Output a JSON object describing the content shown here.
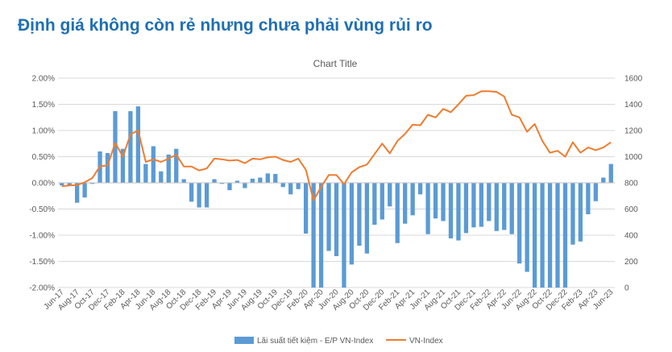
{
  "headline": "Định giá không còn rẻ nhưng chưa phải vùng rủi ro",
  "chart_data": {
    "type": "bar+line",
    "title": "Chart Title",
    "x": [
      "Jun-17",
      "Jul-17",
      "Aug-17",
      "Sep-17",
      "Oct-17",
      "Nov-17",
      "Dec-17",
      "Jan-18",
      "Feb-18",
      "Mar-18",
      "Apr-18",
      "May-18",
      "Jun-18",
      "Jul-18",
      "Aug-18",
      "Sep-18",
      "Oct-18",
      "Nov-18",
      "Dec-18",
      "Jan-19",
      "Feb-19",
      "Mar-19",
      "Apr-19",
      "May-19",
      "Jun-19",
      "Jul-19",
      "Aug-19",
      "Sep-19",
      "Oct-19",
      "Nov-19",
      "Dec-19",
      "Jan-20",
      "Feb-20",
      "Mar-20",
      "Apr-20",
      "May-20",
      "Jun-20",
      "Jul-20",
      "Aug-20",
      "Sep-20",
      "Oct-20",
      "Nov-20",
      "Dec-20",
      "Jan-21",
      "Feb-21",
      "Mar-21",
      "Apr-21",
      "May-21",
      "Jun-21",
      "Jul-21",
      "Aug-21",
      "Sep-21",
      "Oct-21",
      "Nov-21",
      "Dec-21",
      "Jan-22",
      "Feb-22",
      "Mar-22",
      "Apr-22",
      "May-22",
      "Jun-22",
      "Jul-22",
      "Aug-22",
      "Sep-22",
      "Oct-22",
      "Nov-22",
      "Dec-22",
      "Jan-23",
      "Feb-23",
      "Mar-23",
      "Apr-23",
      "May-23",
      "Jun-23"
    ],
    "x_tick_labels": [
      "Jun-17",
      "Aug-17",
      "Oct-17",
      "Dec-17",
      "Feb-18",
      "Apr-18",
      "Jun-18",
      "Aug-18",
      "Oct-18",
      "Dec-18",
      "Feb-19",
      "Apr-19",
      "Jun-19",
      "Aug-19",
      "Oct-19",
      "Dec-19",
      "Feb-20",
      "Apr-20",
      "Jun-20",
      "Aug-20",
      "Oct-20",
      "Dec-20",
      "Feb-21",
      "Apr-21",
      "Jun-21",
      "Aug-21",
      "Oct-21",
      "Dec-21",
      "Feb-22",
      "Apr-22",
      "Jun-22",
      "Aug-22",
      "Oct-22",
      "Dec-22",
      "Feb-23",
      "Apr-23",
      "Jun-23"
    ],
    "y_left_ticks": [
      "2.00%",
      "1.50%",
      "1.00%",
      "0.50%",
      "0.00%",
      "-0.50%",
      "-1.00%",
      "-1.50%",
      "-2.00%"
    ],
    "y_left_lim": [
      -2.0,
      2.0
    ],
    "y_right_ticks": [
      "1600",
      "1400",
      "1200",
      "1000",
      "800",
      "600",
      "400",
      "200",
      "0"
    ],
    "y_right_lim": [
      0,
      1600
    ],
    "grid": true,
    "legend_position": "bottom",
    "series": [
      {
        "name": "Lãi suất tiết kiệm - E/P VN-Index",
        "type": "bar",
        "axis": "left",
        "color": "#5b9bd5",
        "values": [
          -0.05,
          -0.05,
          -0.38,
          -0.28,
          -0.02,
          0.6,
          0.57,
          1.37,
          0.65,
          1.37,
          1.46,
          0.36,
          0.7,
          0.22,
          0.54,
          0.65,
          0.07,
          -0.36,
          -0.47,
          -0.47,
          0.07,
          -0.02,
          -0.14,
          0.04,
          -0.1,
          0.08,
          0.1,
          0.18,
          0.17,
          -0.08,
          -0.22,
          -0.12,
          -0.97,
          -2.0,
          -2.0,
          -1.3,
          -1.4,
          -2.0,
          -1.56,
          -1.2,
          -1.35,
          -0.8,
          -0.7,
          -0.45,
          -1.15,
          -0.78,
          -0.62,
          -0.22,
          -0.98,
          -0.68,
          -0.73,
          -1.06,
          -1.1,
          -0.96,
          -0.85,
          -0.84,
          -0.73,
          -0.92,
          -0.9,
          -0.98,
          -1.54,
          -1.7,
          -2.0,
          -2.0,
          -2.0,
          -2.0,
          -2.0,
          -1.18,
          -1.12,
          -0.6,
          -0.35,
          0.1,
          0.36
        ]
      },
      {
        "name": "VN-Index",
        "type": "line",
        "axis": "right",
        "color": "#ed7d31",
        "values": [
          775,
          780,
          783,
          804,
          837,
          927,
          933,
          1105,
          1000,
          1170,
          1200,
          960,
          980,
          960,
          985,
          1015,
          925,
          925,
          895,
          910,
          985,
          980,
          970,
          975,
          950,
          985,
          980,
          995,
          1000,
          975,
          960,
          985,
          900,
          665,
          770,
          860,
          860,
          790,
          880,
          920,
          940,
          1020,
          1100,
          1025,
          1120,
          1175,
          1245,
          1240,
          1320,
          1300,
          1365,
          1340,
          1400,
          1465,
          1470,
          1500,
          1500,
          1495,
          1460,
          1320,
          1300,
          1190,
          1250,
          1120,
          1030,
          1045,
          1000,
          1110,
          1030,
          1070,
          1050,
          1070,
          1110
        ]
      }
    ]
  }
}
